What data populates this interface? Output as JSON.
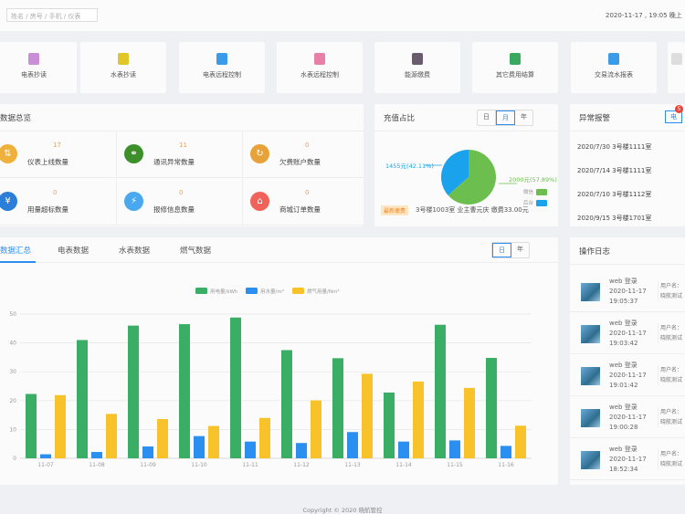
{
  "header": {
    "search_placeholder": "姓名 / 房号 / 手机 / 仪表",
    "datetime": "2020-11-17 , 19:05 晚上"
  },
  "quick_actions": [
    {
      "label": "电表抄读",
      "color": "#c98fd6"
    },
    {
      "label": "水表抄读",
      "color": "#e0c62a"
    },
    {
      "label": "电表远程控制",
      "color": "#3a9be8"
    },
    {
      "label": "水表远程控制",
      "color": "#e77fa6"
    },
    {
      "label": "能源缴费",
      "color": "#6b5b6e"
    },
    {
      "label": "其它费用结算",
      "color": "#3aa85f"
    },
    {
      "label": "交易流水报表",
      "color": "#3a9be8"
    },
    {
      "label": "",
      "color": "#dddddd"
    }
  ],
  "overview": {
    "title": "数据总览",
    "stats": [
      {
        "value": "17",
        "label": "仪表上线数量",
        "color": "#f0b13c",
        "icon": "meter-icon"
      },
      {
        "value": "11",
        "label": "通讯异常数量",
        "color": "#3d8f2a",
        "icon": "link-icon"
      },
      {
        "value": "0",
        "label": "欠费账户数量",
        "color": "#e8a23a",
        "icon": "arrears-icon"
      },
      {
        "value": "0",
        "label": "用量超标数量",
        "color": "#2b7fd8",
        "icon": "yen-icon"
      },
      {
        "value": "0",
        "label": "报修信息数量",
        "color": "#4aa8ee",
        "icon": "lightning-icon"
      },
      {
        "value": "0",
        "label": "商城订单数量",
        "color": "#f0625a",
        "icon": "shop-icon"
      }
    ]
  },
  "recharge": {
    "title": "充值占比",
    "segments": [
      "日",
      "月",
      "年"
    ],
    "active": "月",
    "slices": [
      {
        "label": "1455元(42.11%)",
        "value": 1455,
        "color": "#1aa3ec",
        "name": "后台"
      },
      {
        "label": "2000元(57.89%)",
        "value": 2000,
        "color": "#6cbf4e",
        "name": "微信"
      }
    ],
    "tag": "最新缴费",
    "latest": "3号楼1003室 业主曹元庆 缴费33.00元"
  },
  "alarms": {
    "title": "异常报警",
    "tab": "电",
    "badge": "5",
    "items": [
      "2020/7/30 3号楼1111室",
      "2020/7/14 3号楼1111室",
      "2020/7/10 3号楼1112室",
      "2020/9/15 3号楼1701室"
    ]
  },
  "summary": {
    "tabs": [
      "数据汇总",
      "电表数据",
      "水表数据",
      "燃气数据"
    ],
    "active_tab": "数据汇总",
    "segments": [
      "日",
      "年"
    ],
    "active": "日"
  },
  "chart_data": {
    "type": "bar",
    "categories": [
      "11-07",
      "11-08",
      "11-09",
      "11-10",
      "11-11",
      "11-12",
      "11-13",
      "11-14",
      "11-15",
      "11-16"
    ],
    "ylim": [
      0,
      50
    ],
    "yticks": [
      0,
      10,
      20,
      30,
      40,
      50
    ],
    "grid": true,
    "legend": "top-center",
    "series": [
      {
        "name": "用电量/kWh",
        "color": "#3aae64",
        "values": [
          22.3,
          41,
          46,
          46.5,
          48.8,
          37.5,
          34.7,
          22.8,
          46.3,
          34.8
        ]
      },
      {
        "name": "用水量/m³",
        "color": "#2a8ff0",
        "values": [
          1.4,
          2.2,
          4.1,
          7.7,
          5.8,
          5.3,
          9.1,
          5.8,
          6.2,
          4.3
        ]
      },
      {
        "name": "燃气用量/Nm³",
        "color": "#f8c22a",
        "values": [
          21.9,
          15.4,
          13.6,
          11.2,
          14,
          20.1,
          29.3,
          26.6,
          24.4,
          11.3
        ]
      }
    ]
  },
  "logs": {
    "title": "操作日志",
    "items": [
      {
        "action": "web 登录",
        "date": "2020-11-17",
        "time": "19:05:37",
        "user": "用户名：",
        "name": "晓航测试"
      },
      {
        "action": "web 登录",
        "date": "2020-11-17",
        "time": "19:03:42",
        "user": "用户名：",
        "name": "晓航测试"
      },
      {
        "action": "web 登录",
        "date": "2020-11-17",
        "time": "19:01:42",
        "user": "用户名：",
        "name": "晓航测试"
      },
      {
        "action": "web 登录",
        "date": "2020-11-17",
        "time": "19:00:28",
        "user": "用户名：",
        "name": "晓航测试"
      },
      {
        "action": "web 登录",
        "date": "2020-11-17",
        "time": "18:52:34",
        "user": "用户名：",
        "name": "晓航测试"
      }
    ]
  },
  "footer": "Copyright © 2020 晓航管控"
}
